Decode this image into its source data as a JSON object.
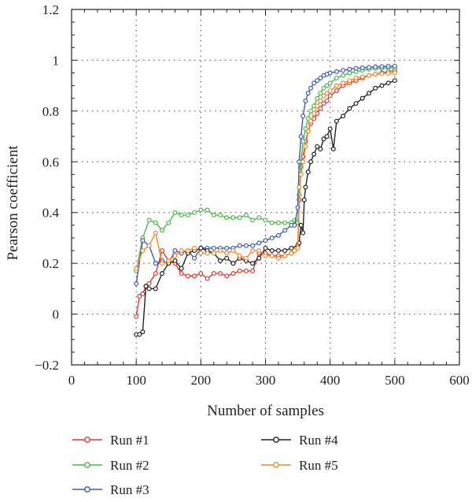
{
  "chart_data": {
    "type": "line",
    "title": "",
    "xlabel": "Number of samples",
    "ylabel": "Pearson coefficient",
    "xlim": [
      0,
      600
    ],
    "ylim": [
      -0.2,
      1.2
    ],
    "xticks": [
      0,
      100,
      200,
      300,
      400,
      500,
      600
    ],
    "yticks": [
      -0.2,
      0,
      0.2,
      0.4,
      0.6,
      0.8,
      1,
      1.2
    ],
    "xtick_labels": [
      "0",
      "100",
      "200",
      "300",
      "400",
      "500",
      "600"
    ],
    "ytick_labels": [
      "−0.2",
      "0",
      "0.2",
      "0.4",
      "0.6",
      "0.8",
      "1",
      "1.2"
    ],
    "grid": "dotted",
    "legend_placement": "bottom",
    "series": [
      {
        "name": "Run #1",
        "color": "#e03a2f",
        "points": [
          [
            100,
            -0.01
          ],
          [
            105,
            0.07
          ],
          [
            110,
            0.08
          ],
          [
            115,
            0.11
          ],
          [
            120,
            0.12
          ],
          [
            130,
            0.16
          ],
          [
            140,
            0.25
          ],
          [
            150,
            0.21
          ],
          [
            160,
            0.2
          ],
          [
            170,
            0.16
          ],
          [
            180,
            0.15
          ],
          [
            190,
            0.15
          ],
          [
            200,
            0.16
          ],
          [
            210,
            0.14
          ],
          [
            220,
            0.16
          ],
          [
            230,
            0.16
          ],
          [
            240,
            0.15
          ],
          [
            250,
            0.16
          ],
          [
            260,
            0.17
          ],
          [
            270,
            0.17
          ],
          [
            280,
            0.17
          ],
          [
            290,
            0.24
          ],
          [
            300,
            0.24
          ],
          [
            310,
            0.23
          ],
          [
            320,
            0.23
          ],
          [
            330,
            0.23
          ],
          [
            340,
            0.24
          ],
          [
            345,
            0.25
          ],
          [
            350,
            0.27
          ],
          [
            352,
            0.45
          ],
          [
            355,
            0.58
          ],
          [
            358,
            0.62
          ],
          [
            362,
            0.68
          ],
          [
            366,
            0.72
          ],
          [
            370,
            0.75
          ],
          [
            375,
            0.77
          ],
          [
            380,
            0.79
          ],
          [
            385,
            0.81
          ],
          [
            390,
            0.83
          ],
          [
            395,
            0.84
          ],
          [
            400,
            0.86
          ],
          [
            410,
            0.88
          ],
          [
            420,
            0.9
          ],
          [
            430,
            0.91
          ],
          [
            440,
            0.92
          ],
          [
            450,
            0.93
          ],
          [
            460,
            0.94
          ],
          [
            470,
            0.945
          ],
          [
            480,
            0.95
          ],
          [
            490,
            0.955
          ],
          [
            500,
            0.96
          ]
        ]
      },
      {
        "name": "Run #2",
        "color": "#4db84a",
        "points": [
          [
            100,
            0.17
          ],
          [
            110,
            0.3
          ],
          [
            120,
            0.37
          ],
          [
            130,
            0.36
          ],
          [
            140,
            0.33
          ],
          [
            150,
            0.36
          ],
          [
            160,
            0.4
          ],
          [
            170,
            0.39
          ],
          [
            180,
            0.39
          ],
          [
            190,
            0.4
          ],
          [
            200,
            0.41
          ],
          [
            210,
            0.41
          ],
          [
            220,
            0.39
          ],
          [
            230,
            0.39
          ],
          [
            240,
            0.38
          ],
          [
            250,
            0.38
          ],
          [
            260,
            0.38
          ],
          [
            270,
            0.39
          ],
          [
            280,
            0.37
          ],
          [
            290,
            0.38
          ],
          [
            300,
            0.37
          ],
          [
            310,
            0.36
          ],
          [
            320,
            0.36
          ],
          [
            330,
            0.36
          ],
          [
            340,
            0.36
          ],
          [
            345,
            0.37
          ],
          [
            350,
            0.36
          ],
          [
            352,
            0.47
          ],
          [
            355,
            0.6
          ],
          [
            358,
            0.68
          ],
          [
            362,
            0.73
          ],
          [
            366,
            0.77
          ],
          [
            370,
            0.8
          ],
          [
            375,
            0.82
          ],
          [
            380,
            0.85
          ],
          [
            385,
            0.87
          ],
          [
            390,
            0.89
          ],
          [
            395,
            0.9
          ],
          [
            400,
            0.91
          ],
          [
            410,
            0.93
          ],
          [
            420,
            0.94
          ],
          [
            430,
            0.95
          ],
          [
            440,
            0.955
          ],
          [
            450,
            0.96
          ],
          [
            460,
            0.965
          ],
          [
            470,
            0.967
          ],
          [
            480,
            0.968
          ],
          [
            490,
            0.97
          ],
          [
            500,
            0.97
          ]
        ]
      },
      {
        "name": "Run #3",
        "color": "#3b5bb5",
        "points": [
          [
            100,
            0.12
          ],
          [
            110,
            0.29
          ],
          [
            120,
            0.27
          ],
          [
            130,
            0.2
          ],
          [
            140,
            0.21
          ],
          [
            150,
            0.2
          ],
          [
            160,
            0.25
          ],
          [
            170,
            0.24
          ],
          [
            180,
            0.25
          ],
          [
            190,
            0.22
          ],
          [
            200,
            0.26
          ],
          [
            210,
            0.26
          ],
          [
            220,
            0.26
          ],
          [
            230,
            0.26
          ],
          [
            240,
            0.26
          ],
          [
            250,
            0.26
          ],
          [
            260,
            0.27
          ],
          [
            270,
            0.27
          ],
          [
            280,
            0.27
          ],
          [
            290,
            0.28
          ],
          [
            300,
            0.29
          ],
          [
            310,
            0.3
          ],
          [
            320,
            0.31
          ],
          [
            330,
            0.33
          ],
          [
            340,
            0.35
          ],
          [
            345,
            0.35
          ],
          [
            350,
            0.42
          ],
          [
            352,
            0.6
          ],
          [
            355,
            0.7
          ],
          [
            358,
            0.78
          ],
          [
            362,
            0.84
          ],
          [
            366,
            0.87
          ],
          [
            370,
            0.89
          ],
          [
            375,
            0.91
          ],
          [
            380,
            0.92
          ],
          [
            385,
            0.93
          ],
          [
            390,
            0.94
          ],
          [
            395,
            0.945
          ],
          [
            400,
            0.95
          ],
          [
            410,
            0.955
          ],
          [
            420,
            0.96
          ],
          [
            430,
            0.965
          ],
          [
            440,
            0.968
          ],
          [
            450,
            0.97
          ],
          [
            460,
            0.972
          ],
          [
            470,
            0.974
          ],
          [
            480,
            0.975
          ],
          [
            490,
            0.976
          ],
          [
            500,
            0.977
          ]
        ]
      },
      {
        "name": "Run #4",
        "color": "#222222",
        "points": [
          [
            100,
            -0.08
          ],
          [
            105,
            -0.08
          ],
          [
            110,
            -0.07
          ],
          [
            115,
            0.11
          ],
          [
            120,
            0.1
          ],
          [
            130,
            0.1
          ],
          [
            140,
            0.16
          ],
          [
            150,
            0.2
          ],
          [
            160,
            0.21
          ],
          [
            170,
            0.18
          ],
          [
            180,
            0.24
          ],
          [
            190,
            0.25
          ],
          [
            200,
            0.26
          ],
          [
            210,
            0.25
          ],
          [
            220,
            0.24
          ],
          [
            230,
            0.21
          ],
          [
            240,
            0.22
          ],
          [
            250,
            0.2
          ],
          [
            260,
            0.22
          ],
          [
            270,
            0.21
          ],
          [
            280,
            0.2
          ],
          [
            290,
            0.22
          ],
          [
            300,
            0.26
          ],
          [
            310,
            0.25
          ],
          [
            320,
            0.25
          ],
          [
            330,
            0.25
          ],
          [
            340,
            0.26
          ],
          [
            350,
            0.27
          ],
          [
            352,
            0.28
          ],
          [
            355,
            0.35
          ],
          [
            358,
            0.32
          ],
          [
            360,
            0.45
          ],
          [
            362,
            0.5
          ],
          [
            366,
            0.56
          ],
          [
            370,
            0.6
          ],
          [
            375,
            0.63
          ],
          [
            380,
            0.66
          ],
          [
            385,
            0.65
          ],
          [
            390,
            0.69
          ],
          [
            395,
            0.7
          ],
          [
            400,
            0.73
          ],
          [
            405,
            0.65
          ],
          [
            410,
            0.76
          ],
          [
            420,
            0.78
          ],
          [
            430,
            0.81
          ],
          [
            440,
            0.83
          ],
          [
            450,
            0.85
          ],
          [
            460,
            0.87
          ],
          [
            470,
            0.89
          ],
          [
            480,
            0.9
          ],
          [
            490,
            0.91
          ],
          [
            500,
            0.92
          ]
        ]
      },
      {
        "name": "Run #5",
        "color": "#f08a2c",
        "points": [
          [
            100,
            0.18
          ],
          [
            110,
            0.25
          ],
          [
            120,
            0.27
          ],
          [
            130,
            0.32
          ],
          [
            140,
            0.2
          ],
          [
            150,
            0.21
          ],
          [
            160,
            0.23
          ],
          [
            170,
            0.25
          ],
          [
            180,
            0.25
          ],
          [
            190,
            0.26
          ],
          [
            200,
            0.24
          ],
          [
            210,
            0.24
          ],
          [
            220,
            0.24
          ],
          [
            230,
            0.25
          ],
          [
            240,
            0.24
          ],
          [
            250,
            0.25
          ],
          [
            260,
            0.23
          ],
          [
            270,
            0.22
          ],
          [
            280,
            0.25
          ],
          [
            290,
            0.25
          ],
          [
            300,
            0.23
          ],
          [
            310,
            0.23
          ],
          [
            320,
            0.22
          ],
          [
            330,
            0.23
          ],
          [
            340,
            0.24
          ],
          [
            345,
            0.25
          ],
          [
            350,
            0.26
          ],
          [
            352,
            0.5
          ],
          [
            355,
            0.55
          ],
          [
            358,
            0.6
          ],
          [
            362,
            0.66
          ],
          [
            366,
            0.72
          ],
          [
            370,
            0.76
          ],
          [
            375,
            0.79
          ],
          [
            380,
            0.82
          ],
          [
            385,
            0.84
          ],
          [
            390,
            0.86
          ],
          [
            395,
            0.87
          ],
          [
            400,
            0.88
          ],
          [
            410,
            0.9
          ],
          [
            420,
            0.91
          ],
          [
            430,
            0.92
          ],
          [
            440,
            0.93
          ],
          [
            450,
            0.935
          ],
          [
            460,
            0.94
          ],
          [
            470,
            0.945
          ],
          [
            480,
            0.947
          ],
          [
            490,
            0.948
          ],
          [
            500,
            0.95
          ]
        ]
      }
    ]
  }
}
